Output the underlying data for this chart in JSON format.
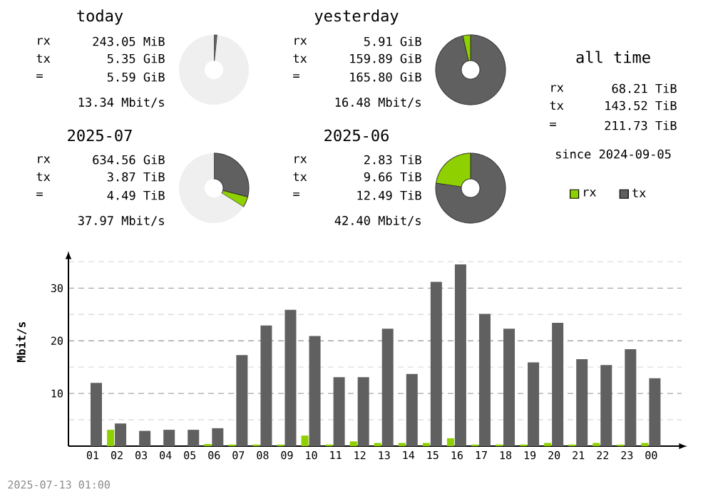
{
  "chart_data": [
    {
      "type": "donut",
      "title": "today",
      "categories": [
        null,
        null
      ],
      "values": [
        1.6,
        98.4
      ],
      "colors": [
        "#606060",
        "#efefef"
      ],
      "annotations": [
        "rx",
        "243.05 MiB",
        "tx",
        "5.35 GiB",
        "=",
        "5.59 GiB",
        "13.34 Mbit/s"
      ]
    },
    {
      "type": "donut",
      "title": "yesterday",
      "categories": [
        null,
        null
      ],
      "values": [
        96.4,
        3.6
      ],
      "colors": [
        "#606060",
        "#8fd000"
      ],
      "annotations": [
        "rx",
        "5.91 GiB",
        "tx",
        "159.89 GiB",
        "=",
        "165.80 GiB",
        "16.48 Mbit/s"
      ]
    },
    {
      "type": "other",
      "title": "all time",
      "annotations": [
        "rx",
        "68.21 TiB",
        "tx",
        "143.52 TiB",
        "=",
        "211.73 TiB",
        "since 2024-09-05"
      ]
    },
    {
      "type": "donut",
      "title": "2025-07",
      "categories": [
        null,
        null,
        null
      ],
      "values": [
        29,
        5,
        66
      ],
      "colors": [
        "#606060",
        "#8fd000",
        "#efefef"
      ],
      "annotations": [
        "rx",
        "634.56 GiB",
        "tx",
        "3.87 TiB",
        "=",
        "4.49 TiB",
        "37.97 Mbit/s"
      ]
    },
    {
      "type": "donut",
      "title": "2025-06",
      "categories": [
        null,
        null
      ],
      "values": [
        77.3,
        22.7
      ],
      "colors": [
        "#606060",
        "#8fd000"
      ],
      "annotations": [
        "rx",
        "2.83 TiB",
        "tx",
        "9.66 TiB",
        "=",
        "12.49 TiB",
        "42.40 Mbit/s"
      ]
    },
    {
      "type": "bar",
      "ylabel": "Mbit/s",
      "categories": [
        "01",
        "02",
        "03",
        "04",
        "05",
        "06",
        "07",
        "08",
        "09",
        "10",
        "11",
        "12",
        "13",
        "14",
        "15",
        "16",
        "17",
        "18",
        "19",
        "20",
        "21",
        "22",
        "23",
        "00"
      ],
      "series": [
        {
          "name": "rx",
          "color": "#8fd000",
          "values": [
            0,
            3.1,
            0,
            0,
            0,
            0.4,
            0.3,
            0.3,
            0.3,
            2.0,
            0.3,
            0.9,
            0.6,
            0.6,
            0.6,
            1.5,
            0.3,
            0.3,
            0.3,
            0.6,
            0.3,
            0.6,
            0.3,
            0.6
          ]
        },
        {
          "name": "tx",
          "color": "#606060",
          "values": [
            12.0,
            4.3,
            2.9,
            3.1,
            3.1,
            3.4,
            17.3,
            22.9,
            25.9,
            20.9,
            13.1,
            13.1,
            22.3,
            13.7,
            31.2,
            34.5,
            25.1,
            22.3,
            15.9,
            23.4,
            16.5,
            15.4,
            18.4,
            12.9
          ]
        }
      ],
      "ylim": [
        0,
        36
      ],
      "yticks": [
        {
          "value": 5,
          "label": null
        },
        10,
        {
          "value": 15,
          "label": null
        },
        20,
        {
          "value": 25,
          "label": null
        },
        30,
        {
          "value": 35,
          "label": null
        }
      ],
      "grid": "y",
      "legend": "top right",
      "annotations": [
        "2025-07-13 01:00"
      ]
    }
  ]
}
